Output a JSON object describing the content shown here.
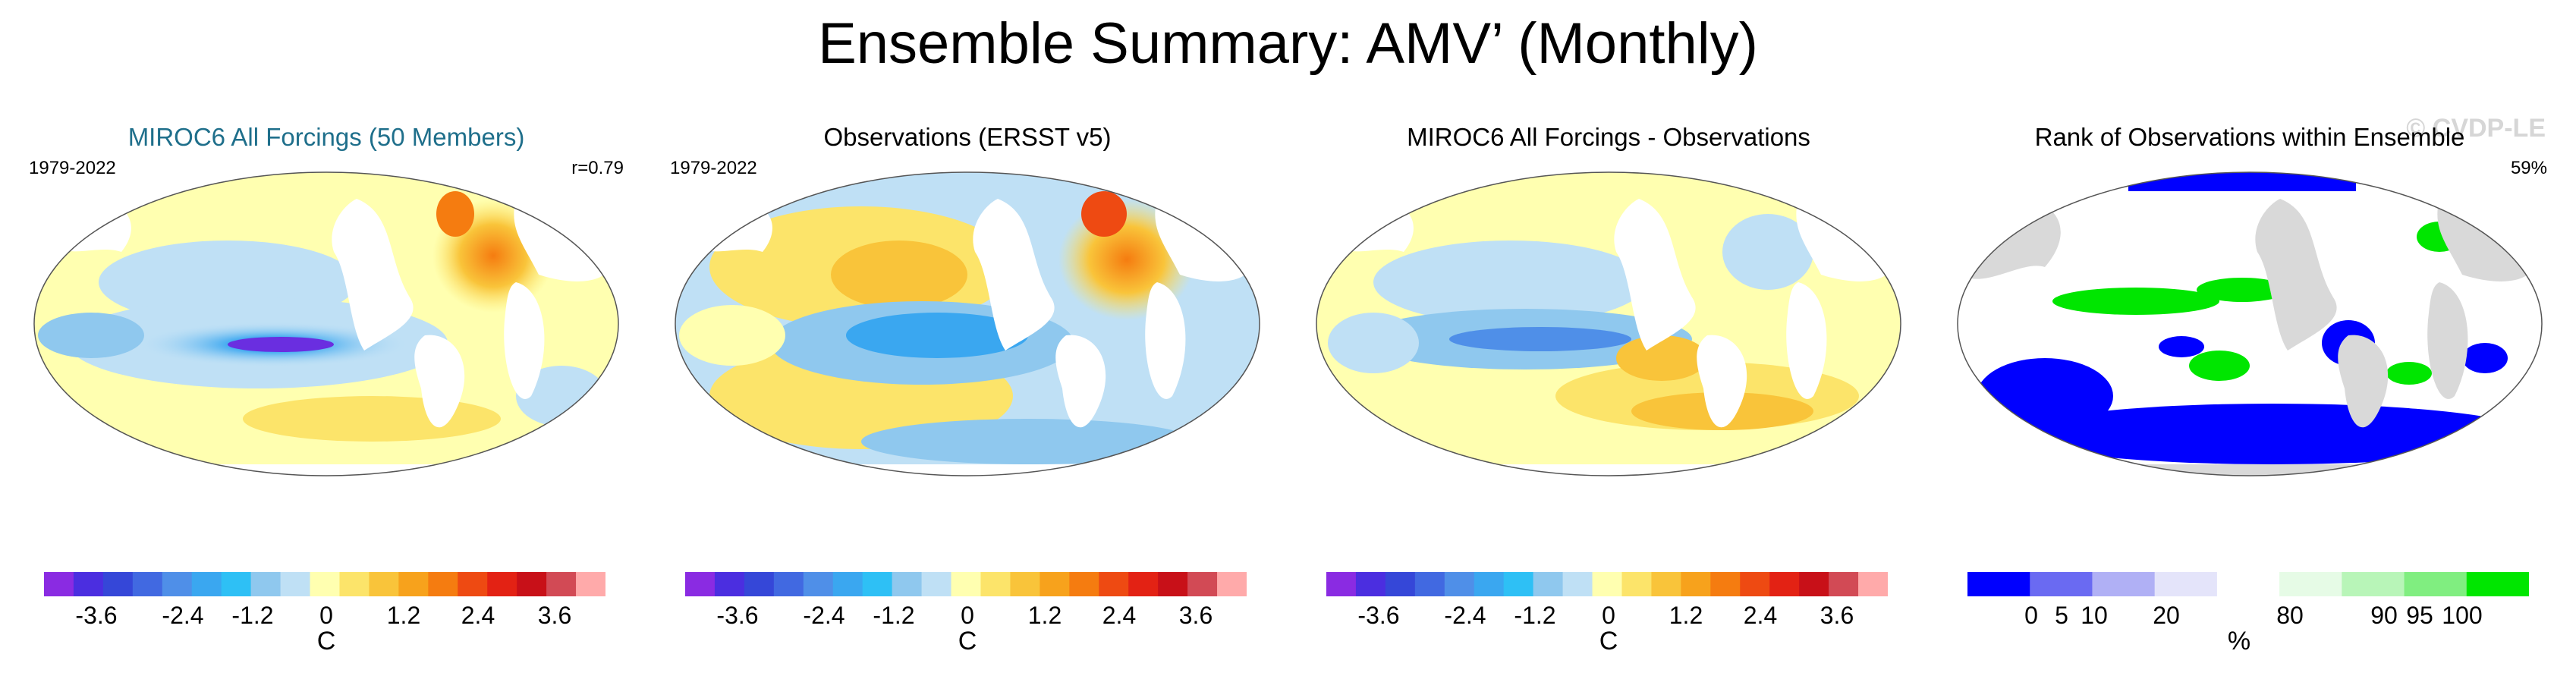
{
  "figure": {
    "title": "Ensemble Summary: AMV’ (Monthly)",
    "watermark": "© CVDP-LE"
  },
  "panels": [
    {
      "title": "MIROC6 All Forcings (50 Members)",
      "period": "1979-2022",
      "stat": "r=0.79",
      "colorbar": {
        "unit": "C",
        "ticks": [
          "-3.6",
          "-2.4",
          "-1.2",
          "0",
          "1.2",
          "2.4",
          "3.6"
        ],
        "colors": [
          "#8a2be2",
          "#4b2ee0",
          "#3547d8",
          "#4169e1",
          "#4f8fe8",
          "#3aa7f0",
          "#2ec0f5",
          "#8fc8ee",
          "#bfe0f5",
          "#ffffb0",
          "#fce46a",
          "#f9c43a",
          "#f7a21c",
          "#f57c10",
          "#ee4a12",
          "#e32214",
          "#c81018",
          "#d24a55",
          "#ffaaaa"
        ]
      }
    },
    {
      "title": "Observations (ERSST v5)",
      "period": "1979-2022",
      "stat": "",
      "colorbar": {
        "unit": "C",
        "ticks": [
          "-3.6",
          "-2.4",
          "-1.2",
          "0",
          "1.2",
          "2.4",
          "3.6"
        ],
        "colors": [
          "#8a2be2",
          "#4b2ee0",
          "#3547d8",
          "#4169e1",
          "#4f8fe8",
          "#3aa7f0",
          "#2ec0f5",
          "#8fc8ee",
          "#bfe0f5",
          "#ffffb0",
          "#fce46a",
          "#f9c43a",
          "#f7a21c",
          "#f57c10",
          "#ee4a12",
          "#e32214",
          "#c81018",
          "#d24a55",
          "#ffaaaa"
        ]
      }
    },
    {
      "title": "MIROC6 All Forcings - Observations",
      "period": "",
      "stat": "",
      "colorbar": {
        "unit": "C",
        "ticks": [
          "-3.6",
          "-2.4",
          "-1.2",
          "0",
          "1.2",
          "2.4",
          "3.6"
        ],
        "colors": [
          "#8a2be2",
          "#4b2ee0",
          "#3547d8",
          "#4169e1",
          "#4f8fe8",
          "#3aa7f0",
          "#2ec0f5",
          "#8fc8ee",
          "#bfe0f5",
          "#ffffb0",
          "#fce46a",
          "#f9c43a",
          "#f7a21c",
          "#f57c10",
          "#ee4a12",
          "#e32214",
          "#c81018",
          "#d24a55",
          "#ffaaaa"
        ]
      }
    },
    {
      "title": "Rank of Observations within Ensemble",
      "period": "",
      "stat": "59%",
      "colorbar": {
        "unit": "%",
        "ticks": [
          "0",
          "5",
          "10",
          "20",
          "80",
          "90",
          "95",
          "100"
        ],
        "colors": [
          "#0000ff",
          "#6a6af2",
          "#b0b0f5",
          "#e4e4fa",
          "#ffffff",
          "#e6fbe6",
          "#b8f5b8",
          "#80ee80",
          "#00e600"
        ]
      }
    }
  ]
}
